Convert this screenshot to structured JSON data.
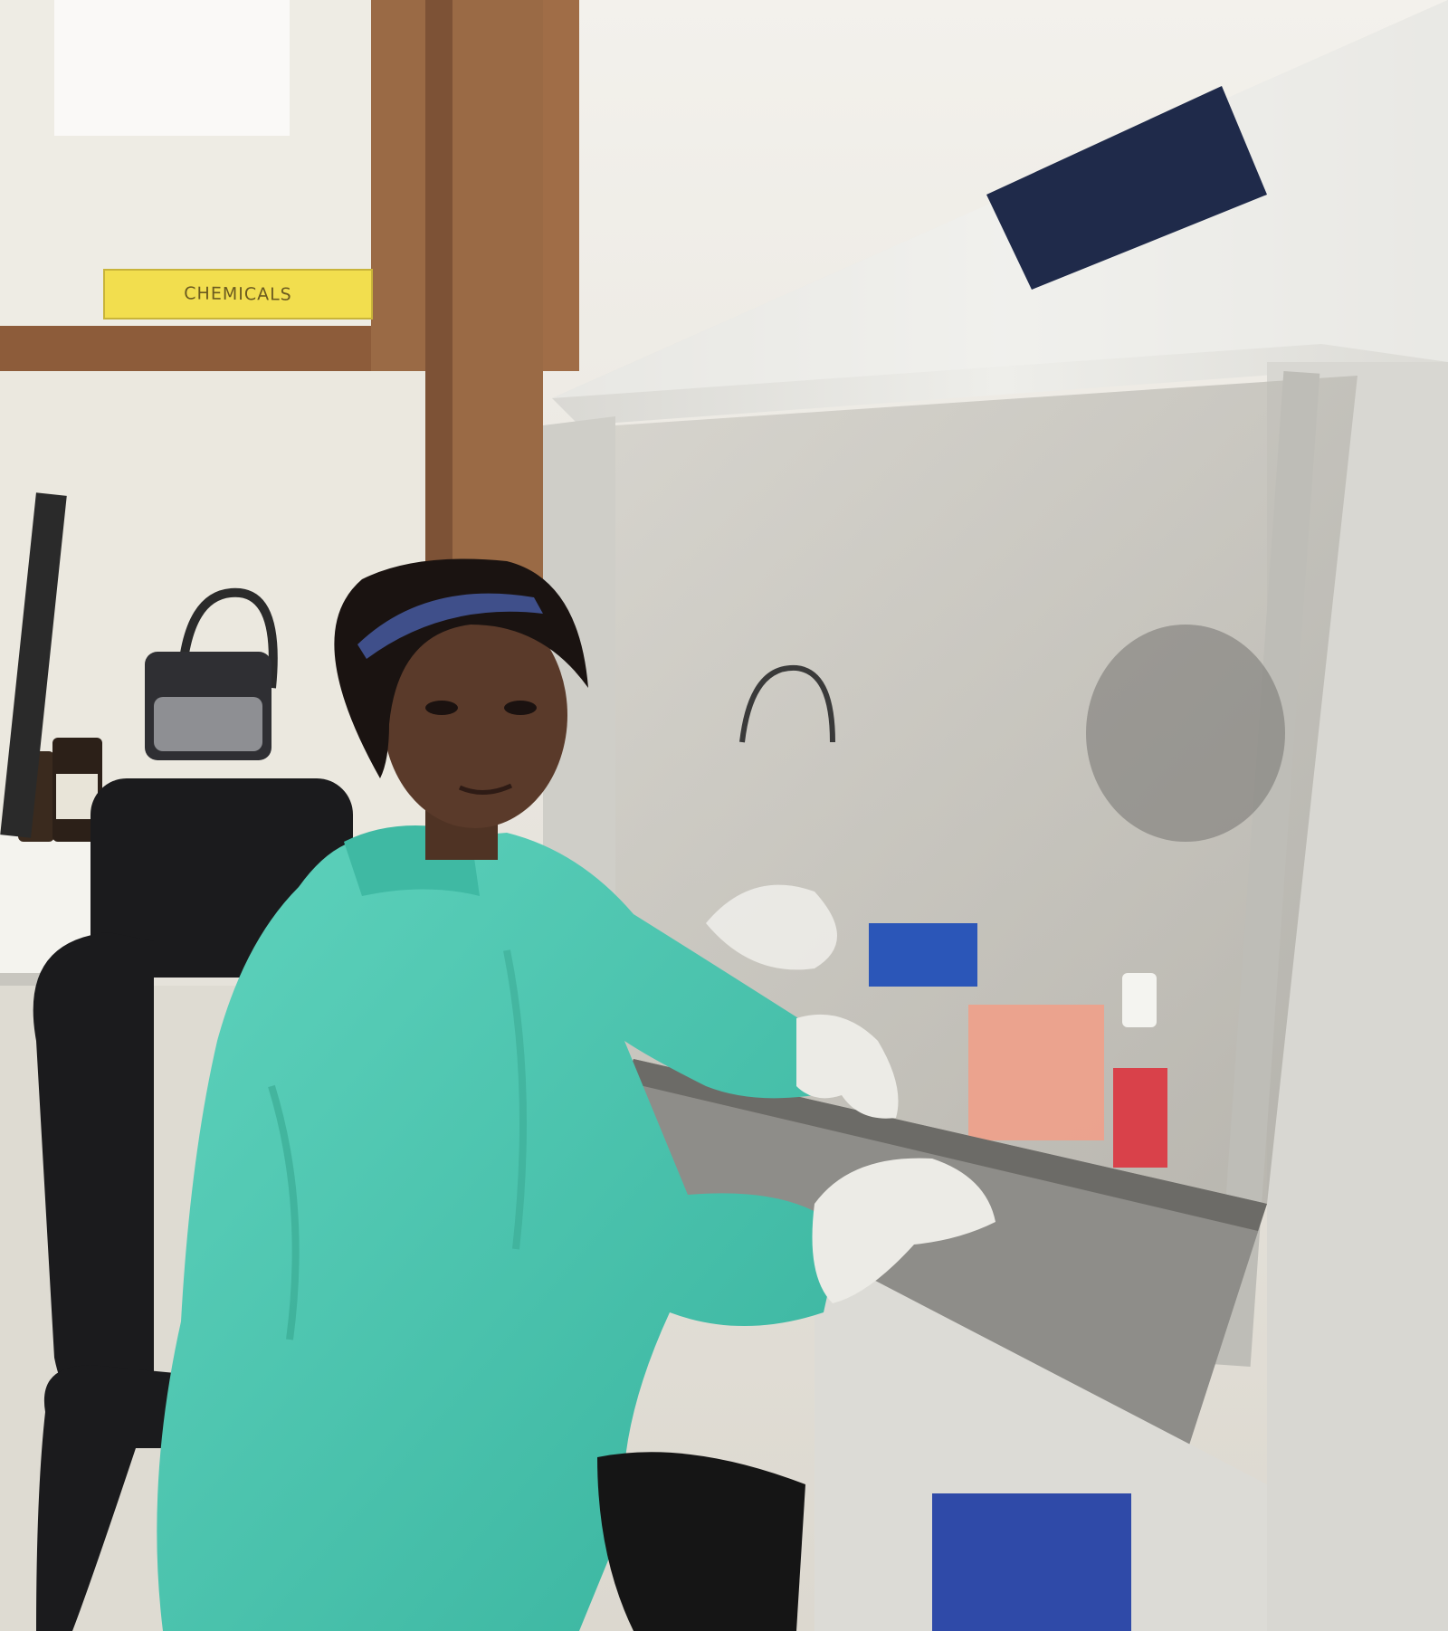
{
  "scene": {
    "description_tag": "lab-photo",
    "sign": {
      "text": "CHEMICALS"
    }
  },
  "palette": {
    "wall": "#ece9e1",
    "wood": "#9a6a45",
    "cabinet": "#e4e3de",
    "label_panel": "#1f2a4a",
    "gown": "#4fc8b2",
    "glove": "#ecebe6",
    "chair": "#1b1b1d",
    "skin": "#5a3a2a",
    "sign_yellow": "#f2de4e"
  }
}
